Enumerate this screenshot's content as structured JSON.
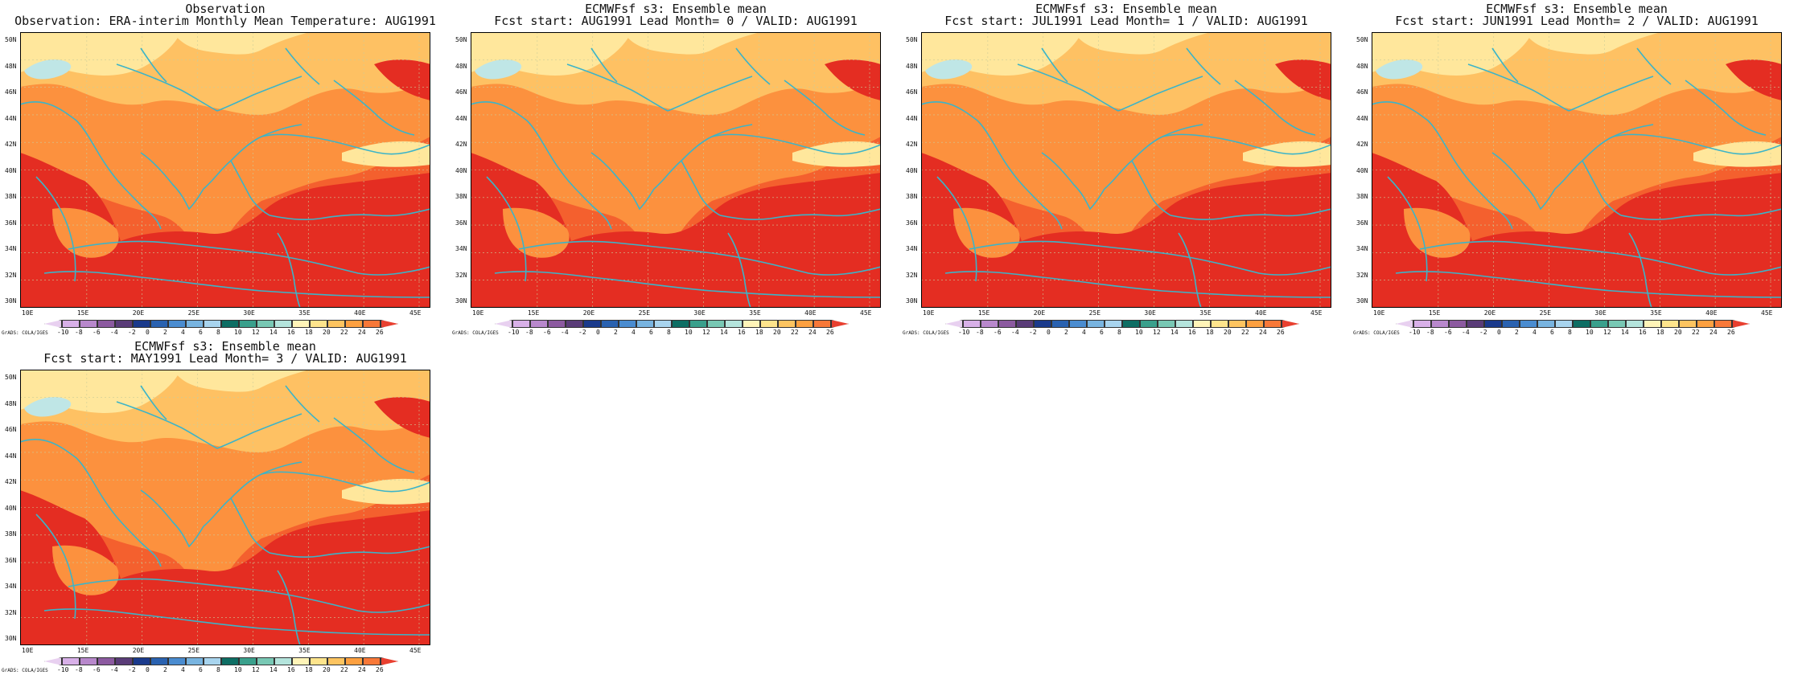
{
  "figure": {
    "panels": [
      {
        "title": "Observation",
        "subtitle": "Observation: ERA-interim Monthly Mean Temperature: AUG1991"
      },
      {
        "title": "ECMWFsf s3: Ensemble mean",
        "subtitle": "Fcst start: AUG1991   Lead Month= 0 / VALID: AUG1991"
      },
      {
        "title": "ECMWFsf s3: Ensemble mean",
        "subtitle": "Fcst start: JUL1991   Lead Month= 1 / VALID: AUG1991"
      },
      {
        "title": "ECMWFsf s3: Ensemble mean",
        "subtitle": "Fcst start: JUN1991   Lead Month= 2 / VALID: AUG1991"
      },
      {
        "title": "ECMWFsf s3: Ensemble mean",
        "subtitle": "Fcst start: MAY1991   Lead Month= 3 / VALID: AUG1991"
      }
    ],
    "lat_labels": [
      "50N",
      "48N",
      "46N",
      "44N",
      "42N",
      "40N",
      "38N",
      "36N",
      "34N",
      "32N",
      "30N"
    ],
    "lon_labels": [
      "10E",
      "15E",
      "20E",
      "25E",
      "30E",
      "35E",
      "40E",
      "45E"
    ],
    "colorbar": {
      "labels": [
        "-10",
        "-8",
        "-6",
        "-4",
        "-2",
        "0",
        "2",
        "4",
        "6",
        "8",
        "10",
        "12",
        "14",
        "16",
        "18",
        "20",
        "22",
        "24",
        "26"
      ],
      "colors": [
        "#e8d0f0",
        "#d8b0e8",
        "#b888cc",
        "#8c5aa0",
        "#5a3c78",
        "#1a3a8c",
        "#2a62b0",
        "#4a8cd0",
        "#78b4e0",
        "#a8d4ee",
        "#0e6e64",
        "#3aa08c",
        "#78c8b4",
        "#b4e4dc",
        "#fff4b8",
        "#fee48c",
        "#fdc460",
        "#fda040",
        "#f87838",
        "#e84030"
      ],
      "credit": "GrADS: COLA/IGES"
    },
    "map_colors": {
      "t_warmest": "#e42d22",
      "t_warm": "#f4602e",
      "t_mid": "#fc913e",
      "t_mild": "#fec163",
      "t_cool": "#ffe79c",
      "t_cold": "#bfe6e6",
      "coast": "#3cb4c8",
      "grid": "#cccc99"
    }
  }
}
